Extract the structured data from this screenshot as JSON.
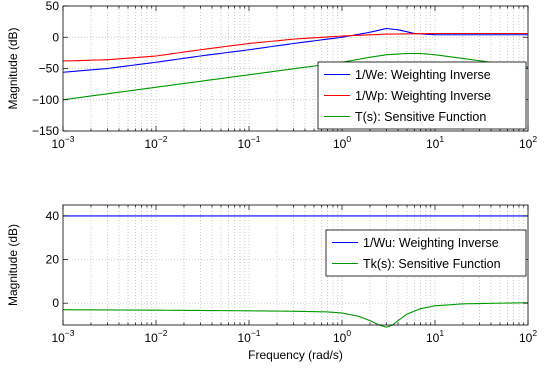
{
  "chart_data": [
    {
      "type": "line",
      "ylabel": "Magnitude (dB)",
      "xlabel": "",
      "x_scale": "log",
      "xlim": [
        0.001,
        100
      ],
      "ylim": [
        -150,
        50
      ],
      "yticks": [
        50,
        0,
        -50,
        -100,
        -150
      ],
      "ytick_labels": [
        "50",
        "0",
        "−50",
        "−100",
        "−150"
      ],
      "xticks": [
        0.001,
        0.01,
        0.1,
        1,
        10,
        100
      ],
      "xtick_labels": [
        {
          "base": "10",
          "exp": "−3"
        },
        {
          "base": "10",
          "exp": "−2"
        },
        {
          "base": "10",
          "exp": "−1"
        },
        {
          "base": "10",
          "exp": "0"
        },
        {
          "base": "10",
          "exp": "1"
        },
        {
          "base": "10",
          "exp": "2"
        }
      ],
      "grid": true,
      "legend_position": "lower-right",
      "series": [
        {
          "name": "1/We: Weighting Inverse",
          "color": "#0000ff",
          "x": [
            0.001,
            0.003,
            0.01,
            0.03,
            0.1,
            0.3,
            1,
            2,
            3,
            4,
            6,
            10,
            30,
            100
          ],
          "y": [
            -56,
            -50,
            -40,
            -30,
            -20,
            -10,
            0,
            8,
            14,
            12,
            6,
            4,
            4,
            4
          ]
        },
        {
          "name": "1/Wp: Weighting Inverse",
          "color": "#ff0000",
          "x": [
            0.001,
            0.003,
            0.01,
            0.03,
            0.1,
            0.3,
            1,
            3,
            10,
            100
          ],
          "y": [
            -38,
            -36,
            -30,
            -20,
            -10,
            -3,
            2,
            5,
            6,
            6
          ]
        },
        {
          "name": "T(s): Sensitive Function",
          "color": "#009900",
          "x": [
            0.001,
            0.01,
            0.1,
            1,
            2,
            3,
            5,
            7,
            10,
            20,
            50,
            100
          ],
          "y": [
            -100,
            -80,
            -60,
            -40,
            -32,
            -28,
            -26,
            -26,
            -28,
            -34,
            -42,
            -48
          ]
        }
      ]
    },
    {
      "type": "line",
      "ylabel": "Magnitude (dB)",
      "xlabel": "Frequency  (rad/s)",
      "x_scale": "log",
      "xlim": [
        0.001,
        100
      ],
      "ylim": [
        -10,
        45
      ],
      "yticks": [
        40,
        20,
        0
      ],
      "ytick_labels": [
        "40",
        "20",
        "0"
      ],
      "xticks": [
        0.001,
        0.01,
        0.1,
        1,
        10,
        100
      ],
      "xtick_labels": [
        {
          "base": "10",
          "exp": "−3"
        },
        {
          "base": "10",
          "exp": "−2"
        },
        {
          "base": "10",
          "exp": "−1"
        },
        {
          "base": "10",
          "exp": "0"
        },
        {
          "base": "10",
          "exp": "1"
        },
        {
          "base": "10",
          "exp": "2"
        }
      ],
      "grid": true,
      "legend_position": "right",
      "series": [
        {
          "name": "1/Wu: Weighting Inverse",
          "color": "#0000ff",
          "x": [
            0.001,
            100
          ],
          "y": [
            40,
            40
          ]
        },
        {
          "name": "Tk(s): Sensitive Function",
          "color": "#009900",
          "x": [
            0.001,
            0.01,
            0.1,
            0.3,
            0.7,
            1,
            1.5,
            2,
            2.5,
            3,
            3.5,
            4,
            5,
            7,
            10,
            20,
            50,
            100
          ],
          "y": [
            -3,
            -3.2,
            -3.5,
            -3.7,
            -4,
            -4.5,
            -6,
            -8,
            -10,
            -11,
            -10,
            -8,
            -5,
            -2.5,
            -1.2,
            -0.3,
            0,
            0.2
          ]
        }
      ]
    }
  ]
}
